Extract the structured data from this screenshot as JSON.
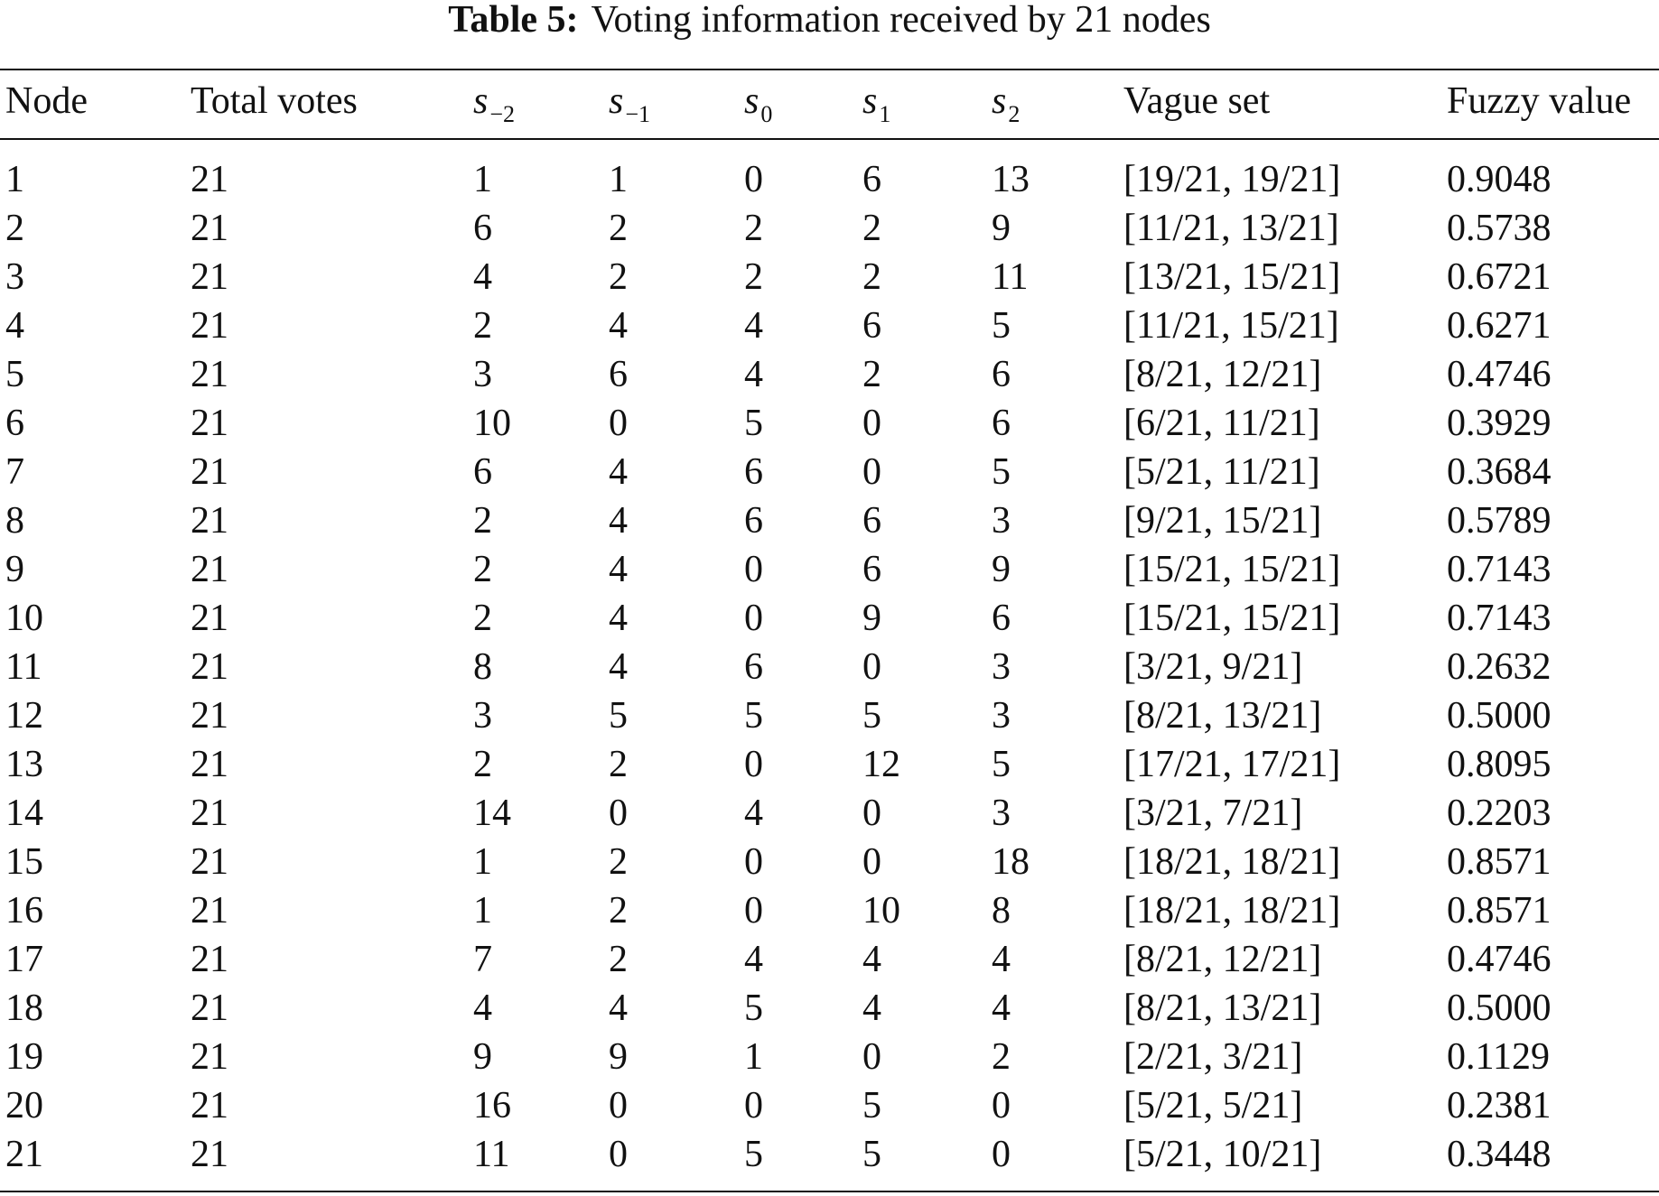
{
  "table": {
    "caption": {
      "label": "Table 5:",
      "text": "Voting information received by 21 nodes"
    },
    "header": [
      {
        "text": "Node"
      },
      {
        "text": "Total votes"
      },
      {
        "symbol": "s",
        "subscript": "−2"
      },
      {
        "symbol": "s",
        "subscript": "−1"
      },
      {
        "symbol": "s",
        "subscript": "0"
      },
      {
        "symbol": "s",
        "subscript": "1"
      },
      {
        "symbol": "s",
        "subscript": "2"
      },
      {
        "text": "Vague set"
      },
      {
        "text": "Fuzzy value"
      }
    ],
    "rows": [
      [
        "1",
        "21",
        "1",
        "1",
        "0",
        "6",
        "13",
        "[19/21, 19/21]",
        "0.9048"
      ],
      [
        "2",
        "21",
        "6",
        "2",
        "2",
        "2",
        "9",
        "[11/21, 13/21]",
        "0.5738"
      ],
      [
        "3",
        "21",
        "4",
        "2",
        "2",
        "2",
        "11",
        "[13/21, 15/21]",
        "0.6721"
      ],
      [
        "4",
        "21",
        "2",
        "4",
        "4",
        "6",
        "5",
        "[11/21, 15/21]",
        "0.6271"
      ],
      [
        "5",
        "21",
        "3",
        "6",
        "4",
        "2",
        "6",
        "[8/21, 12/21]",
        "0.4746"
      ],
      [
        "6",
        "21",
        "10",
        "0",
        "5",
        "0",
        "6",
        "[6/21, 11/21]",
        "0.3929"
      ],
      [
        "7",
        "21",
        "6",
        "4",
        "6",
        "0",
        "5",
        "[5/21, 11/21]",
        "0.3684"
      ],
      [
        "8",
        "21",
        "2",
        "4",
        "6",
        "6",
        "3",
        "[9/21, 15/21]",
        "0.5789"
      ],
      [
        "9",
        "21",
        "2",
        "4",
        "0",
        "6",
        "9",
        "[15/21, 15/21]",
        "0.7143"
      ],
      [
        "10",
        "21",
        "2",
        "4",
        "0",
        "9",
        "6",
        "[15/21, 15/21]",
        "0.7143"
      ],
      [
        "11",
        "21",
        "8",
        "4",
        "6",
        "0",
        "3",
        "[3/21, 9/21]",
        "0.2632"
      ],
      [
        "12",
        "21",
        "3",
        "5",
        "5",
        "5",
        "3",
        "[8/21, 13/21]",
        "0.5000"
      ],
      [
        "13",
        "21",
        "2",
        "2",
        "0",
        "12",
        "5",
        "[17/21, 17/21]",
        "0.8095"
      ],
      [
        "14",
        "21",
        "14",
        "0",
        "4",
        "0",
        "3",
        "[3/21, 7/21]",
        "0.2203"
      ],
      [
        "15",
        "21",
        "1",
        "2",
        "0",
        "0",
        "18",
        "[18/21, 18/21]",
        "0.8571"
      ],
      [
        "16",
        "21",
        "1",
        "2",
        "0",
        "10",
        "8",
        "[18/21, 18/21]",
        "0.8571"
      ],
      [
        "17",
        "21",
        "7",
        "2",
        "4",
        "4",
        "4",
        "[8/21, 12/21]",
        "0.4746"
      ],
      [
        "18",
        "21",
        "4",
        "4",
        "5",
        "4",
        "4",
        "[8/21, 13/21]",
        "0.5000"
      ],
      [
        "19",
        "21",
        "9",
        "9",
        "1",
        "0",
        "2",
        "[2/21, 3/21]",
        "0.1129"
      ],
      [
        "20",
        "21",
        "16",
        "0",
        "0",
        "5",
        "0",
        "[5/21, 5/21]",
        "0.2381"
      ],
      [
        "21",
        "21",
        "11",
        "0",
        "5",
        "5",
        "0",
        "[5/21, 10/21]",
        "0.3448"
      ]
    ]
  }
}
